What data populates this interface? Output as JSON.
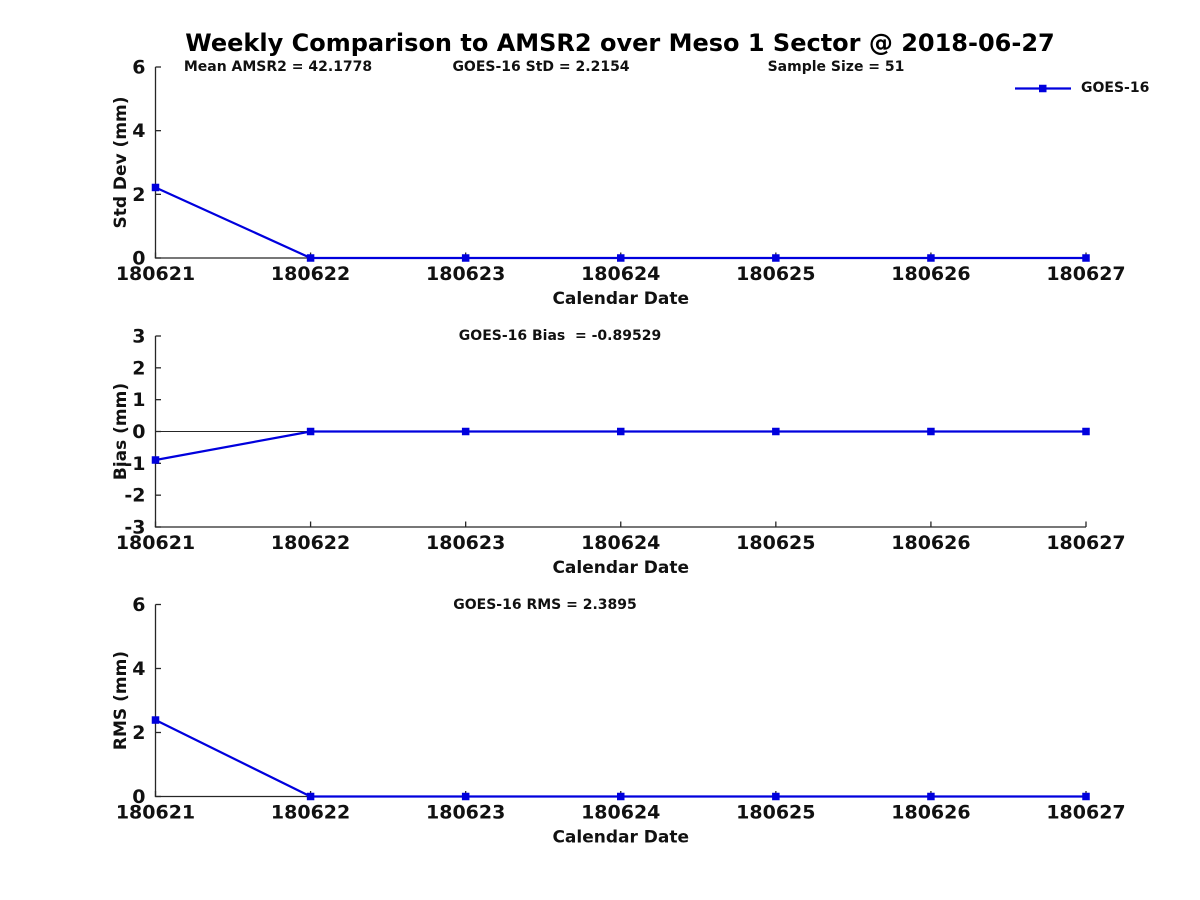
{
  "title": "Weekly Comparison to AMSR2 over Meso 1 Sector @ 2018-06-27",
  "legend": {
    "label": "GOES-16",
    "color": "#0000dd",
    "position": "top-right-outside"
  },
  "colors": {
    "line": "#0000dd",
    "axis": "#262626",
    "text": "#111111",
    "background": "#ffffff"
  },
  "chart_data": [
    {
      "type": "line",
      "name": "std-dev",
      "ylabel": "Std Dev (mm)",
      "xlabel": "Calendar Date",
      "ylim": [
        0,
        6
      ],
      "yticks": [
        0,
        2,
        4,
        6
      ],
      "grid": false,
      "zero_line": false,
      "categories": [
        "180621",
        "180622",
        "180623",
        "180624",
        "180625",
        "180626",
        "180627"
      ],
      "series": [
        {
          "name": "GOES-16",
          "color": "#0000dd",
          "marker": "square",
          "values": [
            2.2154,
            0,
            0,
            0,
            0,
            0,
            0
          ]
        }
      ],
      "annotations": [
        {
          "text": "Mean AMSR2 = 42.1778"
        },
        {
          "text": "GOES-16 StD = 2.2154"
        },
        {
          "text": "Sample Size = 51"
        }
      ]
    },
    {
      "type": "line",
      "name": "bias",
      "ylabel": "Bias (mm)",
      "xlabel": "Calendar Date",
      "ylim": [
        -3,
        3
      ],
      "yticks": [
        -3,
        -2,
        -1,
        0,
        1,
        2,
        3
      ],
      "grid": false,
      "zero_line": true,
      "categories": [
        "180621",
        "180622",
        "180623",
        "180624",
        "180625",
        "180626",
        "180627"
      ],
      "series": [
        {
          "name": "GOES-16",
          "color": "#0000dd",
          "marker": "square",
          "values": [
            -0.89529,
            0,
            0,
            0,
            0,
            0,
            0
          ]
        }
      ],
      "annotations": [
        {
          "text": "GOES-16 Bias  = -0.89529"
        }
      ]
    },
    {
      "type": "line",
      "name": "rms",
      "ylabel": "RMS (mm)",
      "xlabel": "Calendar Date",
      "ylim": [
        0,
        6
      ],
      "yticks": [
        0,
        2,
        4,
        6
      ],
      "grid": false,
      "zero_line": false,
      "categories": [
        "180621",
        "180622",
        "180623",
        "180624",
        "180625",
        "180626",
        "180627"
      ],
      "series": [
        {
          "name": "GOES-16",
          "color": "#0000dd",
          "marker": "square",
          "values": [
            2.3895,
            0,
            0,
            0,
            0,
            0,
            0
          ]
        }
      ],
      "annotations": [
        {
          "text": "GOES-16 RMS = 2.3895"
        }
      ]
    }
  ]
}
